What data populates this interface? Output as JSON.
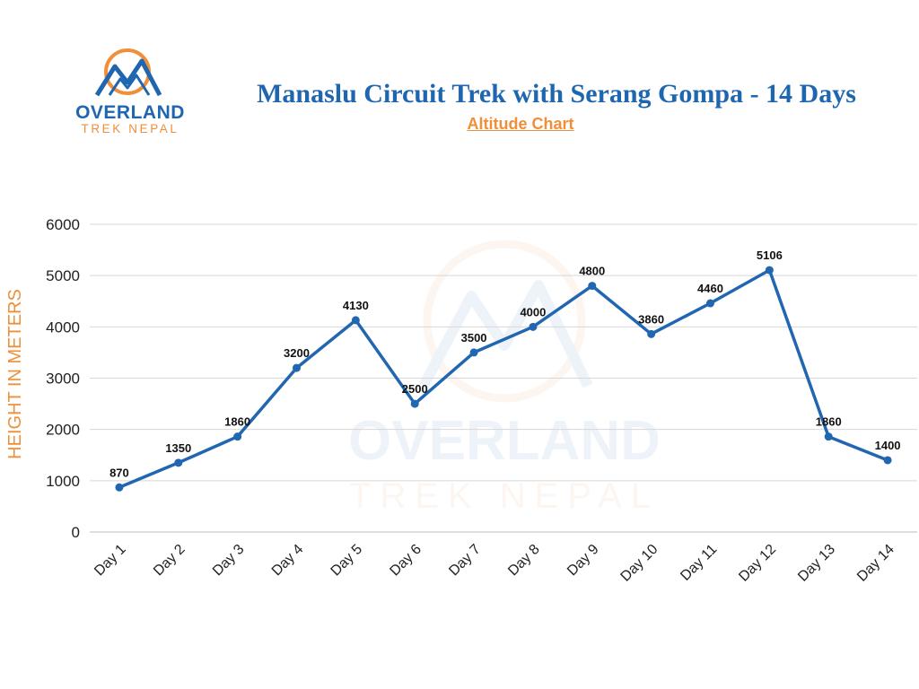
{
  "logo": {
    "word": "OVERLAND",
    "sub": "TREK NEPAL"
  },
  "header": {
    "title": "Manaslu Circuit Trek with Serang Gompa - 14 Days",
    "subtitle": "Altitude Chart"
  },
  "colors": {
    "brand_blue": "#1f66b1",
    "brand_orange": "#ef8f3a",
    "line": "#2166b0",
    "grid": "#d7d7d7"
  },
  "chart_data": {
    "type": "line",
    "title": "Manaslu Circuit Trek with Serang Gompa - 14 Days",
    "subtitle": "Altitude Chart",
    "xlabel": "",
    "ylabel": "HEIGHT IN METERS",
    "categories": [
      "Day 1",
      "Day 2",
      "Day 3",
      "Day 4",
      "Day 5",
      "Day 6",
      "Day 7",
      "Day 8",
      "Day 9",
      "Day 10",
      "Day 11",
      "Day 12",
      "Day 13",
      "Day 14"
    ],
    "series": [
      {
        "values": [
          870,
          1350,
          1860,
          3200,
          4130,
          2500,
          3500,
          4000,
          4800,
          3860,
          4460,
          5106,
          1860,
          1400
        ]
      }
    ],
    "ylim": [
      0,
      6000
    ],
    "yticks": [
      0,
      1000,
      2000,
      3000,
      4000,
      5000,
      6000
    ],
    "grid": true,
    "legend": "none",
    "data_labels": true
  }
}
